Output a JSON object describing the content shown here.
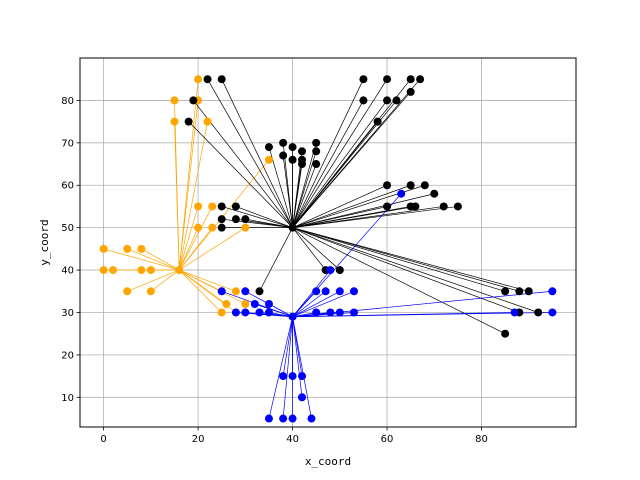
{
  "chart_data": {
    "type": "scatter",
    "title": "",
    "xlabel": "x_coord",
    "ylabel": "y_coord",
    "xlim": [
      -5,
      100
    ],
    "ylim": [
      3,
      90
    ],
    "xticks": [
      0,
      20,
      40,
      60,
      80
    ],
    "yticks": [
      10,
      20,
      30,
      40,
      50,
      60,
      70,
      80
    ],
    "grid": true,
    "groups": [
      {
        "name": "orange",
        "color": "#FFA500",
        "line_color": "#FFA500",
        "hub": [
          16,
          40
        ],
        "points": [
          [
            20,
            85
          ],
          [
            20,
            80
          ],
          [
            15,
            80
          ],
          [
            15,
            75
          ],
          [
            22,
            75
          ],
          [
            35,
            66
          ],
          [
            20,
            55
          ],
          [
            23,
            55
          ],
          [
            20,
            50
          ],
          [
            23,
            50
          ],
          [
            30,
            50
          ],
          [
            0,
            45
          ],
          [
            5,
            45
          ],
          [
            8,
            45
          ],
          [
            0,
            40
          ],
          [
            2,
            40
          ],
          [
            8,
            40
          ],
          [
            10,
            40
          ],
          [
            5,
            35
          ],
          [
            10,
            35
          ],
          [
            25,
            35
          ],
          [
            28,
            35
          ],
          [
            26,
            32
          ],
          [
            30,
            32
          ],
          [
            25,
            30
          ],
          [
            28,
            30
          ]
        ]
      },
      {
        "name": "black",
        "color": "#000000",
        "line_color": "#000000",
        "hub": [
          40,
          50
        ],
        "points": [
          [
            19,
            80
          ],
          [
            22,
            85
          ],
          [
            25,
            85
          ],
          [
            18,
            75
          ],
          [
            55,
            85
          ],
          [
            60,
            85
          ],
          [
            65,
            85
          ],
          [
            67,
            85
          ],
          [
            55,
            80
          ],
          [
            60,
            80
          ],
          [
            62,
            80
          ],
          [
            65,
            82
          ],
          [
            58,
            75
          ],
          [
            35,
            69
          ],
          [
            38,
            70
          ],
          [
            40,
            69
          ],
          [
            38,
            67
          ],
          [
            42,
            68
          ],
          [
            42,
            66
          ],
          [
            45,
            70
          ],
          [
            45,
            68
          ],
          [
            40,
            66
          ],
          [
            42,
            65
          ],
          [
            45,
            65
          ],
          [
            60,
            60
          ],
          [
            65,
            60
          ],
          [
            68,
            60
          ],
          [
            70,
            58
          ],
          [
            60,
            55
          ],
          [
            65,
            55
          ],
          [
            66,
            55
          ],
          [
            72,
            55
          ],
          [
            75,
            55
          ],
          [
            25,
            55
          ],
          [
            28,
            55
          ],
          [
            25,
            52
          ],
          [
            28,
            52
          ],
          [
            30,
            52
          ],
          [
            25,
            50
          ],
          [
            33,
            35
          ],
          [
            47,
            40
          ],
          [
            50,
            40
          ],
          [
            85,
            35
          ],
          [
            88,
            35
          ],
          [
            90,
            35
          ],
          [
            85,
            25
          ],
          [
            88,
            30
          ],
          [
            92,
            30
          ]
        ]
      },
      {
        "name": "blue",
        "color": "#0000FF",
        "line_color": "#0000FF",
        "hub": [
          40,
          29
        ],
        "points": [
          [
            63,
            58
          ],
          [
            48,
            40
          ],
          [
            25,
            35
          ],
          [
            30,
            35
          ],
          [
            32,
            32
          ],
          [
            35,
            32
          ],
          [
            28,
            30
          ],
          [
            30,
            30
          ],
          [
            33,
            30
          ],
          [
            35,
            30
          ],
          [
            45,
            35
          ],
          [
            47,
            35
          ],
          [
            50,
            35
          ],
          [
            53,
            35
          ],
          [
            45,
            30
          ],
          [
            48,
            30
          ],
          [
            50,
            30
          ],
          [
            53,
            30
          ],
          [
            95,
            35
          ],
          [
            87,
            30
          ],
          [
            95,
            30
          ],
          [
            38,
            15
          ],
          [
            40,
            15
          ],
          [
            42,
            15
          ],
          [
            42,
            10
          ],
          [
            35,
            5
          ],
          [
            38,
            5
          ],
          [
            40,
            5
          ],
          [
            44,
            5
          ]
        ]
      }
    ]
  }
}
